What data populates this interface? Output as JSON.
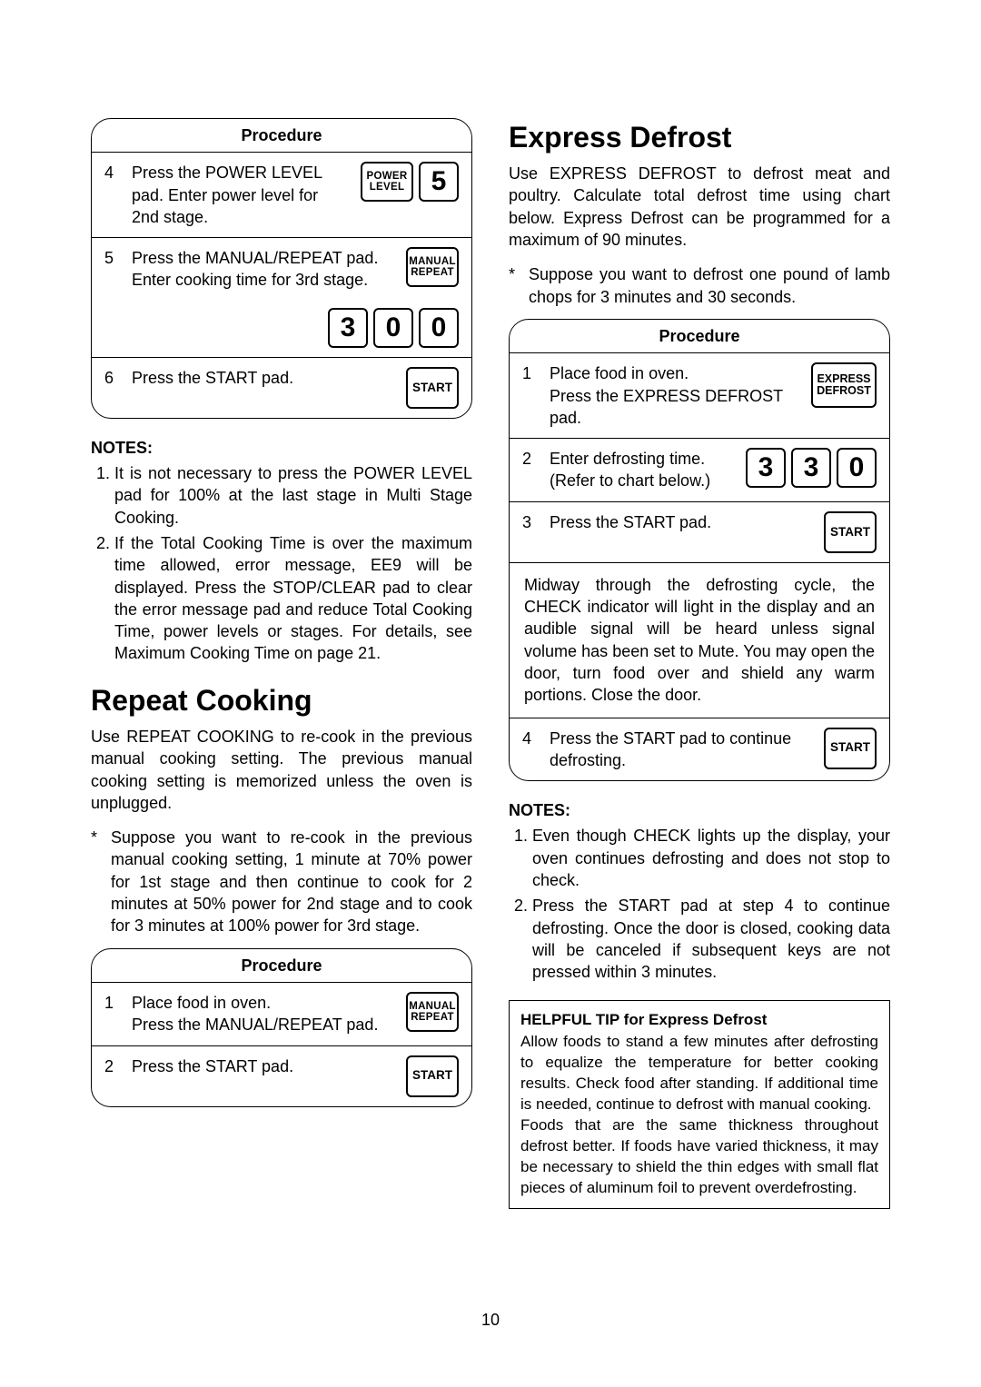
{
  "page_number": "10",
  "col_left": {
    "proc1": {
      "header": "Procedure",
      "rows": [
        {
          "n": "4",
          "text": "Press the POWER LEVEL pad. Enter power level for 2nd stage.",
          "keys": [
            {
              "kind": "small",
              "lines": [
                "POWER",
                "LEVEL"
              ]
            },
            {
              "kind": "big",
              "label": "5"
            }
          ]
        },
        {
          "n": "5",
          "text": "Press the MANUAL/REPEAT pad. Enter cooking time for 3rd stage.",
          "keys_top": [
            {
              "kind": "small",
              "lines": [
                "MANUAL",
                "REPEAT"
              ]
            }
          ],
          "keys_bottom": [
            {
              "kind": "big",
              "label": "3"
            },
            {
              "kind": "big",
              "label": "0"
            },
            {
              "kind": "big",
              "label": "0"
            }
          ]
        },
        {
          "n": "6",
          "text": "Press the START pad.",
          "keys": [
            {
              "kind": "start",
              "label": "START"
            }
          ]
        }
      ]
    },
    "notes_h": "NOTES:",
    "notes": [
      "It is not necessary to press the POWER LEVEL pad for 100% at the last stage in Multi Stage Cooking.",
      "If the Total Cooking Time is over the maximum time allowed, error message, EE9 will be displayed. Press the STOP/CLEAR pad to clear the error message pad and reduce Total Cooking Time, power levels or stages. For details, see Maximum Cooking Time on page 21."
    ],
    "h1": "Repeat Cooking",
    "lead": "Use REPEAT COOKING to re-cook in the previous manual cooking setting. The previous manual cooking setting is memorized unless the oven is unplugged.",
    "star": "Suppose you want to re-cook in the previous manual cooking setting, 1 minute at 70% power for 1st stage and then continue to cook for 2 minutes at 50% power for 2nd stage and to cook for 3 minutes at 100% power for 3rd stage.",
    "proc2": {
      "header": "Procedure",
      "rows": [
        {
          "n": "1",
          "text": "Place food in oven.\nPress the MANUAL/REPEAT pad.",
          "keys": [
            {
              "kind": "small",
              "lines": [
                "MANUAL",
                "REPEAT"
              ]
            }
          ]
        },
        {
          "n": "2",
          "text": "Press the START pad.",
          "keys": [
            {
              "kind": "start",
              "label": "START"
            }
          ]
        }
      ]
    }
  },
  "col_right": {
    "h1": "Express Defrost",
    "lead": "Use EXPRESS DEFROST to defrost meat and poultry. Calculate total defrost time using chart below. Express Defrost can be programmed for a maximum of 90 minutes.",
    "star": "Suppose you want to defrost one pound of lamb chops for 3 minutes and 30 seconds.",
    "proc": {
      "header": "Procedure",
      "rows": [
        {
          "n": "1",
          "text": "Place food in oven.\nPress the EXPRESS DEFROST pad.",
          "keys": [
            {
              "kind": "tall",
              "lines": [
                "EXPRESS",
                "DEFROST"
              ]
            }
          ]
        },
        {
          "n": "2",
          "text": "Enter defrosting time.\n(Refer to chart below.)",
          "keys": [
            {
              "kind": "big",
              "label": "3"
            },
            {
              "kind": "big",
              "label": "3"
            },
            {
              "kind": "big",
              "label": "0"
            }
          ]
        },
        {
          "n": "3",
          "text": "Press the START pad.",
          "keys": [
            {
              "kind": "start",
              "label": "START"
            }
          ]
        }
      ],
      "note_text": "Midway through the defrosting cycle, the CHECK indicator will light in the display and an audible signal will be heard unless signal volume has been set to Mute. You may open the door, turn food over and shield any warm portions. Close the door.",
      "row4": {
        "n": "4",
        "text": "Press the START pad to continue defrosting.",
        "keys": [
          {
            "kind": "start",
            "label": "START"
          }
        ]
      }
    },
    "notes_h": "NOTES:",
    "notes": [
      "Even though CHECK lights up the display, your oven continues defrosting and does not stop to check.",
      "Press the START pad at step 4 to continue defrosting. Once the door is closed, cooking data will be canceled if subsequent keys are not pressed within 3 minutes."
    ],
    "tip_h": "HELPFUL TIP for Express Defrost",
    "tip_body": "Allow foods to stand a few minutes after defrosting to equalize the temperature for better cooking results. Check food after standing. If additional time is needed, continue to defrost with manual cooking.\nFoods that are the same thickness throughout defrost better. If foods have varied thickness, it may be necessary to shield the thin edges with small flat pieces of aluminum foil to prevent overdefrosting."
  }
}
